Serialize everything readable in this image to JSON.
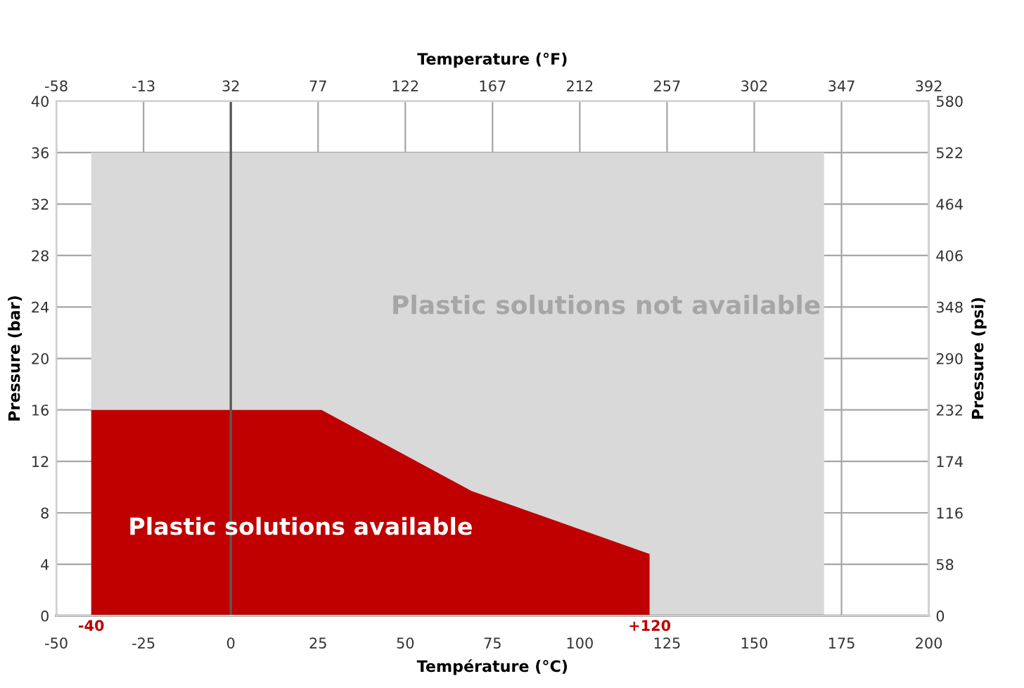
{
  "chart_data": {
    "type": "area",
    "xlabel": "Température (°C)",
    "ylabel": "Pressure (bar)",
    "y2label": "Pressure (psi)",
    "x2label": "Temperature (°F)",
    "series": [
      {
        "color": "#d9d9d9",
        "x": [
          -40,
          170
        ],
        "values": [
          36,
          36
        ]
      },
      {
        "color": "#c00000",
        "x": [
          -40,
          26,
          69,
          120
        ],
        "values": [
          16,
          16,
          9.7,
          4.8
        ]
      }
    ],
    "annotations": [
      "Plastic solutions not available",
      "Plastic solutions available",
      {
        "text": "-40",
        "x": -40,
        "y": 0
      },
      {
        "text": "+120",
        "x": 120,
        "y": 0
      }
    ],
    "ref_lines": [
      {
        "axis": "x",
        "value": 0,
        "color": "#595959"
      }
    ],
    "xlim": [
      -50,
      200
    ],
    "xticks": [
      -50,
      -25,
      0,
      25,
      50,
      75,
      100,
      125,
      150,
      175,
      200
    ],
    "x2lim": [
      -58,
      392
    ],
    "x2ticks": [
      -58,
      -13,
      32,
      77,
      122,
      167,
      212,
      257,
      302,
      347,
      392
    ],
    "ylim": [
      0,
      40
    ],
    "yticks": [
      0,
      4,
      8,
      12,
      16,
      20,
      24,
      28,
      32,
      36,
      40
    ],
    "y2lim": [
      0,
      580
    ],
    "y2ticks": [
      0,
      58,
      116,
      174,
      232,
      290,
      348,
      406,
      464,
      522,
      580
    ],
    "grid": true,
    "legend": false
  }
}
